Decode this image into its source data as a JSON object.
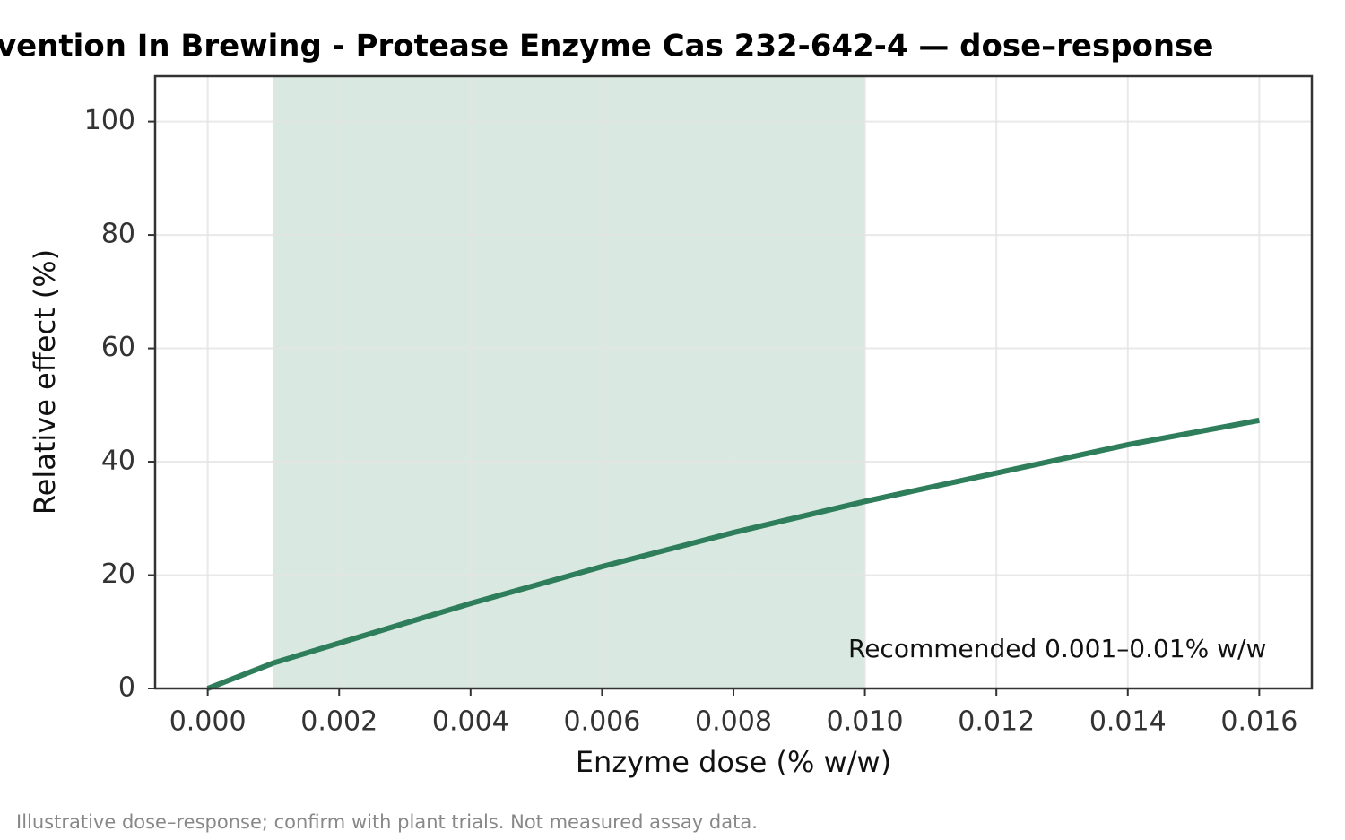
{
  "chart_data": {
    "type": "line",
    "title": "vention In Brewing -  Protease Enzyme Cas 232-642-4 — dose–response",
    "x_label": "Enzyme dose (% w/w)",
    "y_label": "Relative effect (%)",
    "footnote": "Illustrative dose–response; confirm with plant trials. Not measured assay data.",
    "x": [
      0,
      0.001,
      0.002,
      0.004,
      0.006,
      0.008,
      0.01,
      0.012,
      0.014,
      0.016
    ],
    "series": [
      {
        "name": null,
        "color": "#2e7d5b",
        "values": [
          0,
          4.5,
          8,
          15,
          21.5,
          27.5,
          33,
          38,
          43,
          47.3
        ]
      }
    ],
    "span": {
      "name": "Recommended 0.001–0.01% w/w",
      "range": [
        0.001,
        0.01
      ],
      "color": "#d9e9e1"
    },
    "xlim": [
      -0.0008,
      0.0168
    ],
    "ylim": [
      0,
      108
    ],
    "xticks": [
      {
        "value": 0,
        "label": "0.000"
      },
      {
        "value": 0.002,
        "label": "0.002"
      },
      {
        "value": 0.004,
        "label": "0.004"
      },
      {
        "value": 0.006,
        "label": "0.006"
      },
      {
        "value": 0.008,
        "label": "0.008"
      },
      {
        "value": 0.01,
        "label": "0.010"
      },
      {
        "value": 0.012,
        "label": "0.012"
      },
      {
        "value": 0.014,
        "label": "0.014"
      },
      {
        "value": 0.016,
        "label": "0.016"
      }
    ],
    "yticks": [
      0,
      20,
      40,
      60,
      80,
      100
    ],
    "grid": true,
    "legend": "lower right"
  }
}
